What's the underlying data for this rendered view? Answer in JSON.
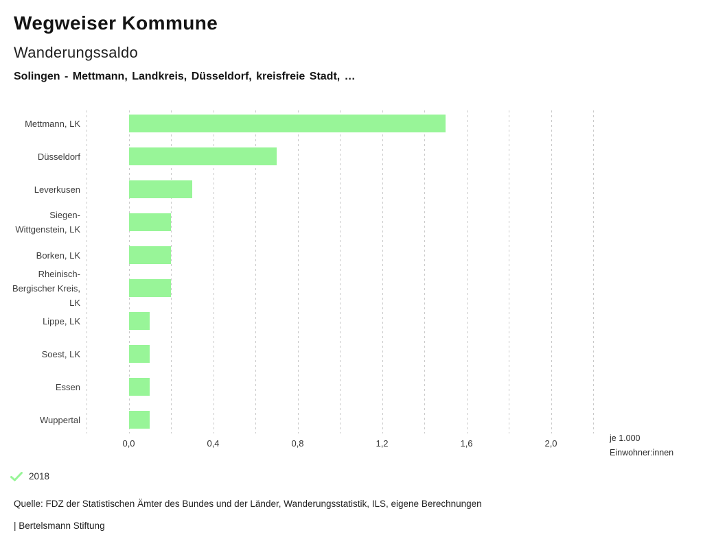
{
  "header": {
    "app_title": "Wegweiser Kommune",
    "chart_title": "Wanderungssaldo",
    "subtitle": "Solingen - Mettmann, Landkreis, Düsseldorf, kreisfreie Stadt, …"
  },
  "chart_data": {
    "type": "bar",
    "orientation": "horizontal",
    "title": "Wanderungssaldo",
    "categories": [
      "Mettmann, LK",
      "Düsseldorf",
      "Leverkusen",
      "Siegen-Wittgenstein, LK",
      "Borken, LK",
      "Rheinisch-Bergischer Kreis, LK",
      "Lippe, LK",
      "Soest, LK",
      "Essen",
      "Wuppertal"
    ],
    "series": [
      {
        "name": "2018",
        "values": [
          1.5,
          0.7,
          0.3,
          0.2,
          0.2,
          0.2,
          0.1,
          0.1,
          0.1,
          0.1
        ]
      }
    ],
    "xlabel": "je 1.000 Einwohner:innen",
    "ylabel": "",
    "xlim": [
      -0.2,
      2.2
    ],
    "gridline_step": 0.2,
    "grid": true,
    "x_ticks": [
      0.0,
      0.4,
      0.8,
      1.2,
      1.6,
      2.0
    ],
    "x_tick_labels": [
      "0,0",
      "0,4",
      "0,8",
      "1,2",
      "1,6",
      "2,0"
    ],
    "bar_color": "#98f598",
    "gridline_color": "#c9c9c9",
    "legend_position": "bottom-left"
  },
  "axis_unit": {
    "line1": "je 1.000",
    "line2": "Einwohner:innen"
  },
  "legend": {
    "year_label": "2018",
    "check_icon": "checkmark-icon",
    "check_color": "#98f598"
  },
  "footer": {
    "source": "Quelle: FDZ der Statistischen Ämter des Bundes und der Länder, Wanderungsstatistik, ILS, eigene Berechnungen",
    "brand": "| Bertelsmann Stiftung"
  }
}
